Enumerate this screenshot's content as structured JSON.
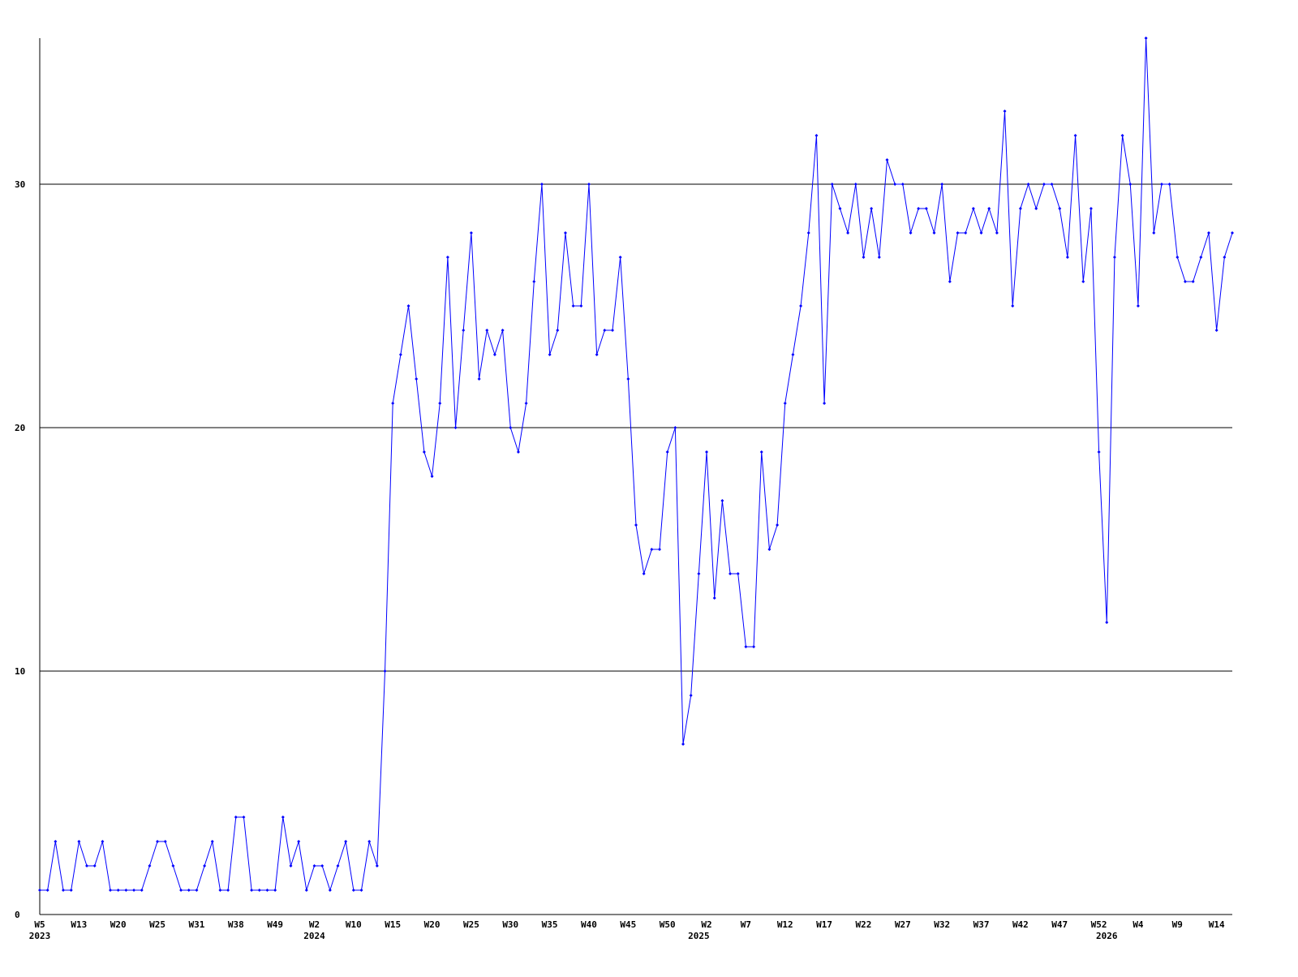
{
  "chart_data": {
    "type": "line",
    "color": "#0000ff",
    "categories": [
      "W5",
      null,
      null,
      null,
      null,
      "W13",
      null,
      null,
      null,
      null,
      "W20",
      null,
      null,
      null,
      null,
      "W25",
      null,
      null,
      null,
      null,
      "W31",
      null,
      null,
      null,
      null,
      "W38",
      null,
      null,
      null,
      null,
      "W49",
      null,
      null,
      null,
      null,
      "W2",
      null,
      null,
      null,
      null,
      "W10",
      null,
      null,
      null,
      null,
      "W15",
      null,
      null,
      null,
      null,
      "W20",
      null,
      null,
      null,
      null,
      "W25",
      null,
      null,
      null,
      null,
      "W30",
      null,
      null,
      null,
      null,
      "W35",
      null,
      null,
      null,
      null,
      "W40",
      null,
      null,
      null,
      null,
      "W45",
      null,
      null,
      null,
      null,
      "W50",
      null,
      null,
      null,
      null,
      "W2",
      null,
      null,
      null,
      null,
      "W7",
      null,
      null,
      null,
      null,
      "W12",
      null,
      null,
      null,
      null,
      "W17",
      null,
      null,
      null,
      null,
      "W22",
      null,
      null,
      null,
      null,
      "W27",
      null,
      null,
      null,
      null,
      "W32",
      null,
      null,
      null,
      null,
      "W37",
      null,
      null,
      null,
      null,
      "W42",
      null,
      null,
      null,
      null,
      "W47",
      null,
      null,
      null,
      null,
      "W52",
      null,
      null,
      null,
      null,
      "W4",
      null,
      null,
      null,
      null,
      "W9",
      null,
      null,
      null,
      null,
      "W14",
      null,
      null
    ],
    "year_labels": [
      {
        "value": 0,
        "label": "2023"
      },
      {
        "value": 35,
        "label": "2024"
      },
      {
        "value": 84,
        "label": "2025"
      },
      {
        "value": 136,
        "label": "2026"
      }
    ],
    "values": [
      1,
      1,
      3,
      1,
      1,
      3,
      2,
      2,
      3,
      1,
      1,
      1,
      1,
      1,
      2,
      3,
      3,
      2,
      1,
      1,
      1,
      2,
      3,
      1,
      1,
      4,
      4,
      1,
      1,
      1,
      1,
      4,
      2,
      3,
      1,
      2,
      2,
      1,
      2,
      3,
      1,
      1,
      3,
      2,
      10,
      21,
      23,
      25,
      22,
      19,
      18,
      21,
      27,
      20,
      24,
      28,
      22,
      24,
      23,
      24,
      20,
      19,
      21,
      26,
      30,
      23,
      24,
      28,
      25,
      25,
      30,
      23,
      24,
      24,
      27,
      22,
      16,
      14,
      15,
      15,
      19,
      20,
      7,
      9,
      14,
      19,
      13,
      17,
      14,
      14,
      11,
      11,
      19,
      15,
      16,
      21,
      23,
      25,
      28,
      32,
      21,
      30,
      29,
      28,
      30,
      27,
      29,
      27,
      31,
      30,
      30,
      28,
      29,
      29,
      28,
      30,
      26,
      28,
      28,
      29,
      28,
      29,
      28,
      33,
      25,
      29,
      30,
      29,
      30,
      30,
      29,
      27,
      32,
      26,
      29,
      19,
      12,
      27,
      32,
      30,
      25,
      36,
      28,
      30,
      30,
      27,
      26,
      26,
      27,
      28,
      24,
      27,
      28
    ],
    "ylim": [
      0,
      36
    ],
    "yticks": [
      0,
      10,
      20,
      30
    ],
    "grid": true
  }
}
